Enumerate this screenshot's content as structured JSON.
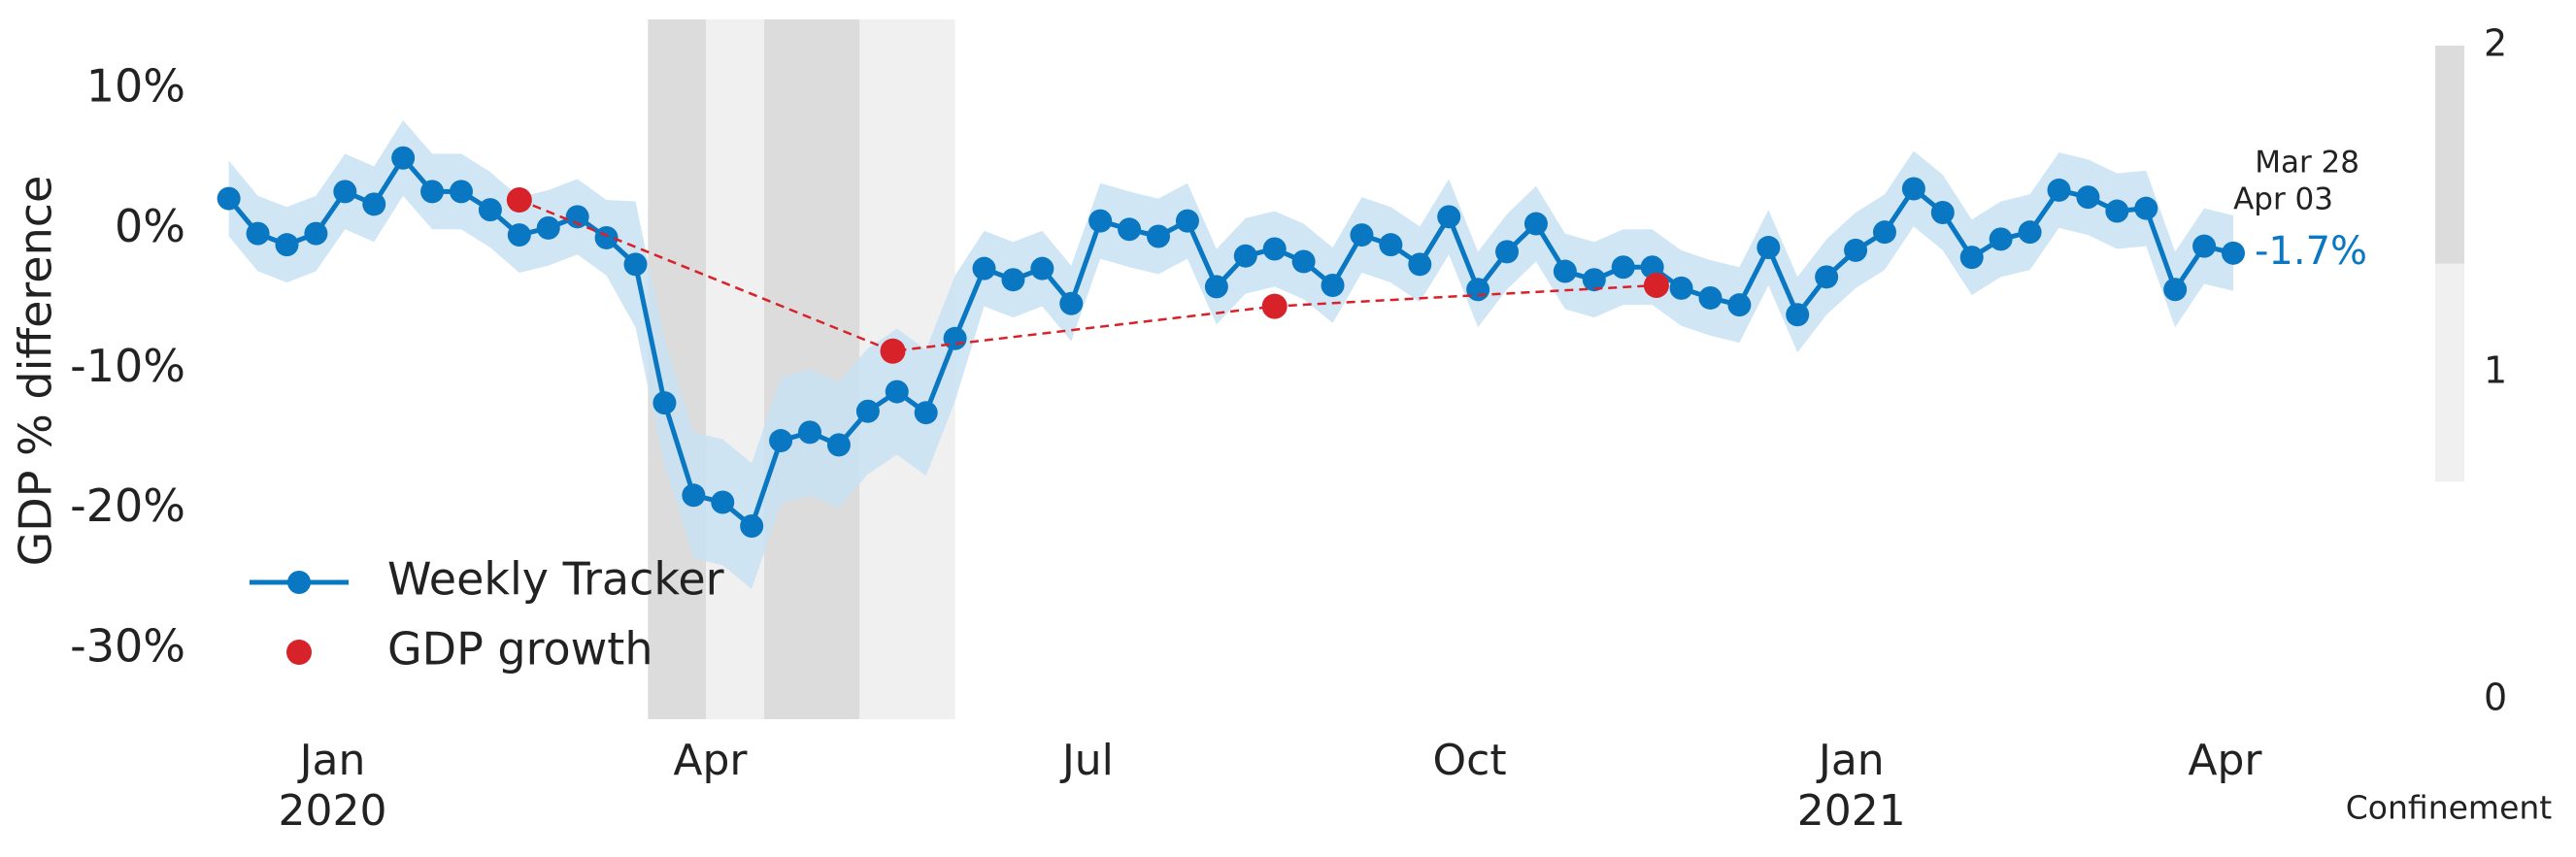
{
  "chart_data": {
    "type": "line",
    "y_label": "GDP % difference",
    "xlim": [
      "2019-12-01",
      "2021-04-03"
    ],
    "xticks": [
      {
        "value": "2020-01-01",
        "label": "Jan\n2020"
      },
      {
        "value": "2020-04-01",
        "label": "Apr"
      },
      {
        "value": "2020-07-01",
        "label": "Jul"
      },
      {
        "value": "2020-10-01",
        "label": "Oct"
      },
      {
        "value": "2021-01-01",
        "label": "Jan\n2021"
      },
      {
        "value": "2021-04-01",
        "label": "Apr"
      }
    ],
    "ylim": [
      -35,
      15
    ],
    "yticks": [
      {
        "value": 10,
        "label": "10%"
      },
      {
        "value": 0,
        "label": "0%"
      },
      {
        "value": -10,
        "label": "-10%"
      },
      {
        "value": -20,
        "label": "-20%"
      },
      {
        "value": -30,
        "label": "-30%"
      }
    ],
    "grid": false,
    "legend": "lower left",
    "series": [
      {
        "name": "Weekly Tracker",
        "type": "line",
        "color": "#0a77c2",
        "band_color": "#c9e2f3",
        "x": [
          "2019-12-07",
          "2019-12-14",
          "2019-12-21",
          "2019-12-28",
          "2020-01-04",
          "2020-01-11",
          "2020-01-18",
          "2020-01-25",
          "2020-02-01",
          "2020-02-08",
          "2020-02-15",
          "2020-02-22",
          "2020-02-29",
          "2020-03-07",
          "2020-03-14",
          "2020-03-21",
          "2020-03-28",
          "2020-04-04",
          "2020-04-11",
          "2020-04-18",
          "2020-04-25",
          "2020-05-02",
          "2020-05-09",
          "2020-05-16",
          "2020-05-23",
          "2020-05-30",
          "2020-06-06",
          "2020-06-13",
          "2020-06-20",
          "2020-06-27",
          "2020-07-04",
          "2020-07-11",
          "2020-07-18",
          "2020-07-25",
          "2020-08-01",
          "2020-08-08",
          "2020-08-15",
          "2020-08-22",
          "2020-08-29",
          "2020-09-05",
          "2020-09-12",
          "2020-09-19",
          "2020-09-26",
          "2020-10-03",
          "2020-10-10",
          "2020-10-17",
          "2020-10-24",
          "2020-10-31",
          "2020-11-07",
          "2020-11-14",
          "2020-11-21",
          "2020-11-28",
          "2020-12-05",
          "2020-12-12",
          "2020-12-19",
          "2020-12-26",
          "2021-01-02",
          "2021-01-09",
          "2021-01-16",
          "2021-01-23",
          "2021-01-30",
          "2021-02-06",
          "2021-02-13",
          "2021-02-20",
          "2021-02-27",
          "2021-03-06",
          "2021-03-13",
          "2021-03-20",
          "2021-03-27",
          "2021-04-03"
        ],
        "values": [
          2.2,
          -0.3,
          -1.1,
          -0.3,
          2.7,
          1.8,
          5.1,
          2.7,
          2.7,
          1.4,
          -0.4,
          0.1,
          0.9,
          -0.6,
          -2.5,
          -12.4,
          -19.0,
          -19.5,
          -21.2,
          -15.1,
          -14.5,
          -15.4,
          -13.0,
          -11.6,
          -13.1,
          -7.8,
          -2.8,
          -3.6,
          -2.8,
          -5.3,
          0.6,
          0.0,
          -0.5,
          0.6,
          -4.1,
          -1.9,
          -1.4,
          -2.3,
          -4.0,
          -0.4,
          -1.1,
          -2.5,
          0.9,
          -4.3,
          -1.6,
          0.4,
          -3.0,
          -3.6,
          -2.7,
          -2.7,
          -4.2,
          -4.9,
          -5.4,
          -1.3,
          -6.1,
          -3.4,
          -1.5,
          -0.2,
          2.9,
          1.2,
          -2.0,
          -0.7,
          -0.2,
          2.8,
          2.3,
          1.3,
          1.5,
          -4.3,
          -1.2,
          -1.7
        ],
        "upper": [
          4.9,
          2.4,
          1.6,
          2.4,
          5.4,
          4.5,
          7.8,
          5.4,
          5.4,
          4.1,
          2.3,
          2.8,
          3.6,
          2.1,
          2.0,
          -7.9,
          -14.5,
          -15.0,
          -16.7,
          -10.6,
          -10.0,
          -10.9,
          -8.5,
          -7.1,
          -8.6,
          -3.3,
          -0.1,
          -0.9,
          -0.1,
          -2.6,
          3.3,
          2.7,
          2.2,
          3.3,
          -1.4,
          0.8,
          1.3,
          0.4,
          -1.3,
          2.3,
          1.6,
          0.2,
          3.6,
          -1.6,
          1.1,
          3.1,
          -0.3,
          -0.9,
          0.0,
          0.0,
          -1.5,
          -2.2,
          -2.7,
          1.4,
          -3.4,
          -0.7,
          1.2,
          2.5,
          5.6,
          3.9,
          0.7,
          2.0,
          2.5,
          5.5,
          5.0,
          4.0,
          4.2,
          -1.6,
          1.5,
          1.0
        ],
        "lower": [
          -0.5,
          -3.0,
          -3.8,
          -3.0,
          0.0,
          -0.9,
          2.4,
          0.0,
          0.0,
          -1.3,
          -3.1,
          -2.6,
          -1.8,
          -3.3,
          -7.0,
          -16.9,
          -23.5,
          -24.0,
          -25.7,
          -19.6,
          -19.0,
          -19.9,
          -17.5,
          -16.1,
          -17.6,
          -12.3,
          -5.5,
          -6.3,
          -5.5,
          -8.0,
          -2.1,
          -2.7,
          -3.2,
          -2.1,
          -6.8,
          -4.6,
          -4.1,
          -5.0,
          -6.7,
          -3.1,
          -3.8,
          -5.2,
          -1.8,
          -7.0,
          -4.3,
          -2.3,
          -5.7,
          -6.3,
          -5.4,
          -5.4,
          -6.9,
          -7.6,
          -8.1,
          -4.0,
          -8.8,
          -6.1,
          -4.2,
          -2.9,
          0.2,
          -1.5,
          -4.7,
          -3.4,
          -2.9,
          0.1,
          -0.4,
          -1.4,
          -1.2,
          -7.0,
          -3.9,
          -4.4
        ],
        "value_labels": [
          null,
          null,
          null,
          null,
          null,
          null,
          null,
          null,
          null,
          null,
          null,
          null,
          null,
          null,
          null,
          null,
          null,
          null,
          null,
          null,
          null,
          null,
          null,
          null,
          null,
          null,
          null,
          null,
          null,
          null,
          null,
          null,
          null,
          null,
          null,
          null,
          null,
          null,
          null,
          null,
          null,
          null,
          null,
          null,
          null,
          null,
          null,
          null,
          null,
          null,
          null,
          null,
          null,
          null,
          null,
          null,
          null,
          null,
          null,
          null,
          null,
          null,
          null,
          null,
          null,
          null,
          null,
          null,
          null,
          "-1.7%"
        ]
      },
      {
        "name": "GDP growth",
        "type": "scatter",
        "color": "#d7222a",
        "line_style": "dashed",
        "x": [
          "2020-02-15",
          "2020-05-15",
          "2020-08-15",
          "2020-11-15"
        ],
        "values": [
          2.1,
          -8.7,
          -5.5,
          -4.0
        ]
      }
    ],
    "annotations": [
      "Mar 28",
      "Apr 03"
    ],
    "confinement": {
      "label": "Confinement",
      "periods": [
        {
          "start": "2020-03-17",
          "end": "2020-03-31",
          "level": 2
        },
        {
          "start": "2020-03-31",
          "end": "2020-04-14",
          "level": 1
        },
        {
          "start": "2020-04-14",
          "end": "2020-05-07",
          "level": 2
        },
        {
          "start": "2020-05-07",
          "end": "2020-05-30",
          "level": 1
        }
      ],
      "colors": [
        "#ffffff",
        "#f0f0f0",
        "#dcdcdc"
      ],
      "lim": [
        0,
        2
      ],
      "ticks": [
        0,
        1,
        2
      ]
    }
  }
}
